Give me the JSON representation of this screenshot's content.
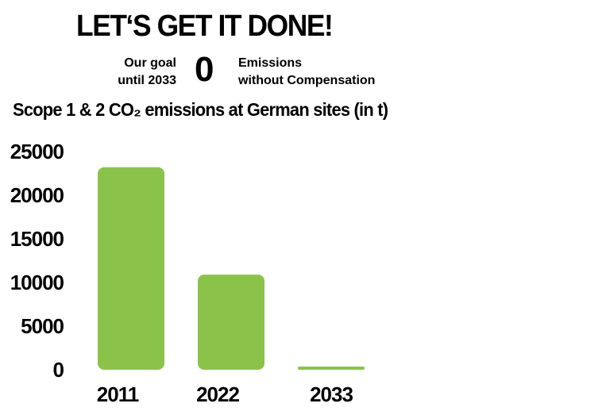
{
  "header": {
    "headline": "LET‘S GET IT DONE!",
    "goal_label_line1": "Our goal",
    "goal_label_line2": "until 2033",
    "goal_value": "0",
    "goal_desc_line1": "Emissions",
    "goal_desc_line2": "without Compensation"
  },
  "colors": {
    "bar": "#8bc34a",
    "text": "#000000",
    "background": "#ffffff"
  },
  "chart_data": {
    "type": "bar",
    "title": "Scope 1 & 2 CO₂ emissions at German sites (in t)",
    "xlabel": "",
    "ylabel": "",
    "categories": [
      "2011",
      "2022",
      "2033"
    ],
    "values": [
      23200,
      10900,
      300
    ],
    "yticks": [
      "25000",
      "20000",
      "15000",
      "10000",
      "5000",
      "0"
    ],
    "ylim": [
      0,
      25000
    ],
    "grid": false,
    "legend": "none"
  }
}
